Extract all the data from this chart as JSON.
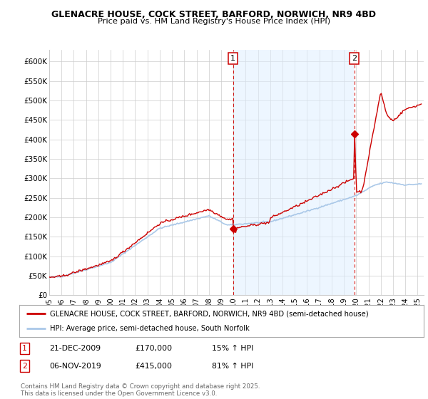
{
  "title1": "GLENACRE HOUSE, COCK STREET, BARFORD, NORWICH, NR9 4BD",
  "title2": "Price paid vs. HM Land Registry's House Price Index (HPI)",
  "ylabel_ticks": [
    "£0",
    "£50K",
    "£100K",
    "£150K",
    "£200K",
    "£250K",
    "£300K",
    "£350K",
    "£400K",
    "£450K",
    "£500K",
    "£550K",
    "£600K"
  ],
  "ytick_values": [
    0,
    50000,
    100000,
    150000,
    200000,
    250000,
    300000,
    350000,
    400000,
    450000,
    500000,
    550000,
    600000
  ],
  "ylim": [
    0,
    630000
  ],
  "xlim_start": 1995.0,
  "xlim_end": 2025.5,
  "xtick_years": [
    1995,
    1996,
    1997,
    1998,
    1999,
    2000,
    2001,
    2002,
    2003,
    2004,
    2005,
    2006,
    2007,
    2008,
    2009,
    2010,
    2011,
    2012,
    2013,
    2014,
    2015,
    2016,
    2017,
    2018,
    2019,
    2020,
    2021,
    2022,
    2023,
    2024,
    2025
  ],
  "property_color": "#cc0000",
  "hpi_color": "#aac8e8",
  "hpi_fill_color": "#ddeeff",
  "vline_color": "#cc0000",
  "shade_color": "#ddeeff",
  "marker1_year": 2009.97,
  "marker1_value": 170000,
  "marker1_label": "1",
  "marker2_year": 2019.85,
  "marker2_value": 415000,
  "marker2_label": "2",
  "legend_property": "GLENACRE HOUSE, COCK STREET, BARFORD, NORWICH, NR9 4BD (semi-detached house)",
  "legend_hpi": "HPI: Average price, semi-detached house, South Norfolk",
  "annotation1_date": "21-DEC-2009",
  "annotation1_price": "£170,000",
  "annotation1_hpi": "15% ↑ HPI",
  "annotation2_date": "06-NOV-2019",
  "annotation2_price": "£415,000",
  "annotation2_hpi": "81% ↑ HPI",
  "footer": "Contains HM Land Registry data © Crown copyright and database right 2025.\nThis data is licensed under the Open Government Licence v3.0.",
  "background_color": "#ffffff",
  "grid_color": "#cccccc"
}
